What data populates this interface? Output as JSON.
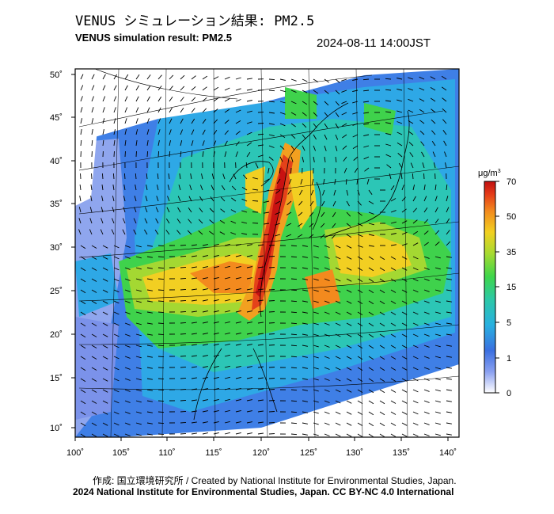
{
  "header": {
    "title_jp": "VENUS シミュレーション結果: PM2.5",
    "title_en": "VENUS simulation result: PM2.5",
    "timestamp": "2024-08-11 14:00JST"
  },
  "map": {
    "lat_labels": [
      "50˚",
      "45˚",
      "40˚",
      "35˚",
      "30˚",
      "25˚",
      "20˚",
      "15˚",
      "10˚"
    ],
    "lon_labels": [
      "100˚",
      "105˚",
      "110˚",
      "115˚",
      "120˚",
      "125˚",
      "130˚",
      "135˚",
      "140˚"
    ],
    "colors": {
      "ocean_white": "#ffffff",
      "frame": "#000000"
    }
  },
  "colorbar": {
    "unit": "μg/m",
    "unit_sup": "3",
    "ticks": [
      "70",
      "50",
      "35",
      "15",
      "5",
      "1",
      "0"
    ],
    "colors": [
      "#ffffff",
      "#5a78e6",
      "#2aa7e8",
      "#25c9c0",
      "#3ed64a",
      "#9ad93a",
      "#f2d020",
      "#f59a1e",
      "#e9421a",
      "#c81010"
    ]
  },
  "footer": {
    "credit_line1": "作成: 国立環境研究所 / Created by National Institute for Environmental Studies, Japan.",
    "credit_line2": "2024 National Institute for Environmental Studies, Japan. CC BY-NC 4.0 International"
  }
}
